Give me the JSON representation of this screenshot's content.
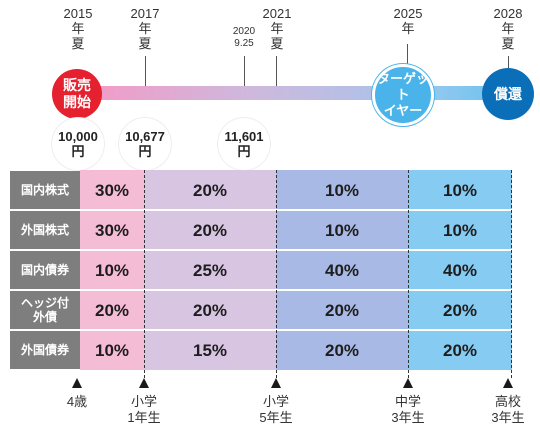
{
  "timeline": {
    "years": [
      {
        "year": "2015",
        "l1": "年",
        "l2": "夏"
      },
      {
        "year": "2017",
        "l1": "年",
        "l2": "夏"
      },
      {
        "year": "2021",
        "l1": "年",
        "l2": "夏"
      },
      {
        "year": "2025",
        "l1": "年",
        "l2": ""
      },
      {
        "year": "2028",
        "l1": "年",
        "l2": "夏"
      }
    ],
    "small_date": {
      "l1": "2020",
      "l2": "9.25"
    },
    "start_label": [
      "販売",
      "開始"
    ],
    "target_label": [
      "ターゲット",
      "イヤー"
    ],
    "redeem_label": "償還"
  },
  "prices": [
    {
      "value": "10,000",
      "unit": "円"
    },
    {
      "value": "10,677",
      "unit": "円"
    },
    {
      "value": "11,601",
      "unit": "円"
    }
  ],
  "table": {
    "rows": [
      {
        "label": [
          "国内株式"
        ],
        "values": [
          "30%",
          "20%",
          "10%",
          "10%"
        ]
      },
      {
        "label": [
          "外国株式"
        ],
        "values": [
          "30%",
          "20%",
          "10%",
          "10%"
        ]
      },
      {
        "label": [
          "国内債券"
        ],
        "values": [
          "10%",
          "25%",
          "40%",
          "40%"
        ]
      },
      {
        "label": [
          "ヘッジ付",
          "外債"
        ],
        "values": [
          "20%",
          "20%",
          "20%",
          "20%"
        ]
      },
      {
        "label": [
          "外国債券"
        ],
        "values": [
          "10%",
          "15%",
          "20%",
          "20%"
        ]
      }
    ]
  },
  "grades": [
    {
      "l1": "4歳",
      "l2": ""
    },
    {
      "l1": "小学",
      "l2": "1年生"
    },
    {
      "l1": "小学",
      "l2": "5年生"
    },
    {
      "l1": "中学",
      "l2": "3年生"
    },
    {
      "l1": "高校",
      "l2": "3年生"
    }
  ],
  "colors": {
    "start": "#e5212f",
    "target": "#4ab4ea",
    "redeem": "#0a6fb8",
    "band1": "#f5bcd6",
    "band2": "#d8c5e2",
    "band3": "#a9b9e6",
    "band4": "#86cbf2"
  }
}
